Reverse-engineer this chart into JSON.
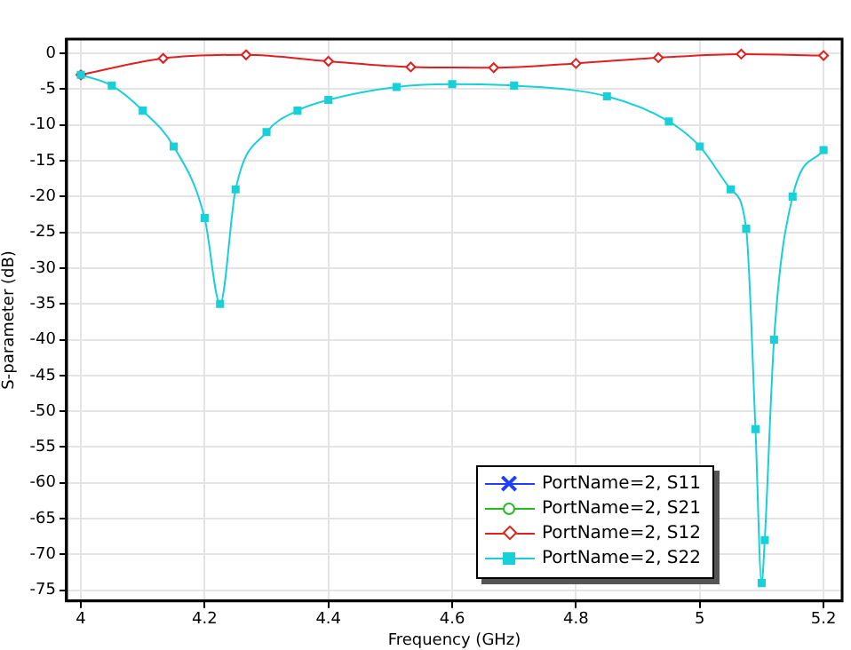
{
  "chart_data": {
    "type": "line",
    "xlabel": "Frequency (GHz)",
    "ylabel": "S-parameter (dB)",
    "xlim": [
      3.977,
      5.23
    ],
    "ylim": [
      -76.5,
      2
    ],
    "xticks": [
      4,
      4.2,
      4.4,
      4.6,
      4.8,
      5,
      5.2
    ],
    "yticks": [
      0,
      -5,
      -10,
      -15,
      -20,
      -25,
      -30,
      -35,
      -40,
      -45,
      -50,
      -55,
      -60,
      -65,
      -70,
      -75
    ],
    "grid": true,
    "legend": "bottom right",
    "series": [
      {
        "name": "PortName=2, S11",
        "color": "#1f3fff",
        "marker": "star"
      },
      {
        "name": "PortName=2, S21",
        "color": "#22bb22",
        "marker": "circle"
      },
      {
        "name": "PortName=2, S12",
        "color": "#e02020",
        "marker": "diamond",
        "x": [
          4,
          4.133,
          4.267,
          4.4,
          4.533,
          4.667,
          4.8,
          4.933,
          5.067,
          5.2
        ],
        "values": [
          -3,
          -0.7,
          -0.2,
          -1.1,
          -1.9,
          -2,
          -1.4,
          -0.6,
          -0.1,
          -0.3
        ]
      },
      {
        "name": "PortName=2, S22",
        "color": "#18d0d8",
        "marker": "square",
        "x": [
          4,
          4.05,
          4.1,
          4.15,
          4.2,
          4.225,
          4.25,
          4.3,
          4.35,
          4.4,
          4.51,
          4.6,
          4.7,
          4.85,
          4.95,
          5.0,
          5.05,
          5.075,
          5.09,
          5.1,
          5.105,
          5.12,
          5.15,
          5.2
        ],
        "values": [
          -3,
          -4.5,
          -8,
          -13,
          -23,
          -35,
          -19,
          -11,
          -8,
          -6.5,
          -4.7,
          -4.3,
          -4.5,
          -6,
          -9.5,
          -13,
          -19,
          -24.5,
          -52.5,
          -74,
          -68,
          -40,
          -20,
          -13.5
        ]
      }
    ]
  }
}
